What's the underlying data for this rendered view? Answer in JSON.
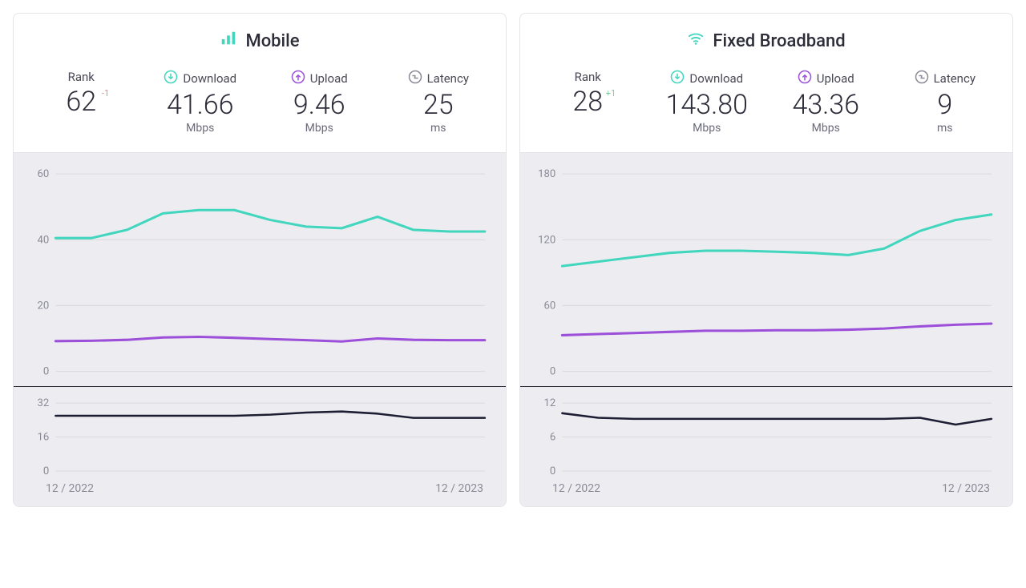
{
  "colors": {
    "download": "#41d6bd",
    "upload": "#9c4fd9",
    "latency": "#1d1d33",
    "grid": "#d8d8de",
    "axis_text": "#8a8a98",
    "panel_bg": "#ffffff",
    "chart_bg": "#ededf1",
    "icon_latency": "#8a8a98",
    "delta_neg": "#d9534f",
    "delta_pos": "#3fb66b"
  },
  "date_range": {
    "start": "12 / 2022",
    "end": "12 / 2023"
  },
  "labels": {
    "rank": "Rank",
    "download": "Download",
    "upload": "Upload",
    "latency": "Latency",
    "mbps": "Mbps",
    "ms": "ms"
  },
  "panels": [
    {
      "key": "mobile",
      "title": "Mobile",
      "icon": "bars",
      "rank": {
        "value": "62",
        "delta": "-1",
        "delta_dir": "neg"
      },
      "download": {
        "value": "41.66",
        "unit": "Mbps"
      },
      "upload": {
        "value": "9.46",
        "unit": "Mbps"
      },
      "latency": {
        "value": "25",
        "unit": "ms"
      },
      "main_chart": {
        "ylim": [
          0,
          60
        ],
        "yticks": [
          0,
          20,
          40,
          60
        ],
        "series": {
          "download": [
            40.5,
            40.5,
            43,
            48,
            49,
            49,
            46,
            44,
            43.5,
            47,
            43,
            42.5,
            42.5
          ],
          "upload": [
            9.2,
            9.3,
            9.6,
            10.3,
            10.5,
            10.2,
            9.8,
            9.5,
            9.1,
            10.0,
            9.6,
            9.5,
            9.5
          ]
        }
      },
      "latency_chart": {
        "ylim": [
          0,
          32
        ],
        "yticks": [
          0,
          16,
          32
        ],
        "series": {
          "latency": [
            26,
            26,
            26,
            26,
            26,
            26,
            26.5,
            27.5,
            28,
            27,
            25,
            25,
            25
          ]
        }
      }
    },
    {
      "key": "fixed",
      "title": "Fixed Broadband",
      "icon": "wifi",
      "rank": {
        "value": "28",
        "delta": "+1",
        "delta_dir": "pos"
      },
      "download": {
        "value": "143.80",
        "unit": "Mbps"
      },
      "upload": {
        "value": "43.36",
        "unit": "Mbps"
      },
      "latency": {
        "value": "9",
        "unit": "ms"
      },
      "main_chart": {
        "ylim": [
          0,
          180
        ],
        "yticks": [
          0,
          60,
          120,
          180
        ],
        "series": {
          "download": [
            96,
            100,
            104,
            108,
            110,
            110,
            109,
            108,
            106,
            112,
            128,
            138,
            143
          ],
          "upload": [
            33,
            34,
            35,
            36,
            37,
            37,
            37.5,
            37.5,
            38,
            39,
            41,
            42.5,
            43.5
          ]
        }
      },
      "latency_chart": {
        "ylim": [
          0,
          12
        ],
        "yticks": [
          0,
          6,
          12
        ],
        "series": {
          "latency": [
            10.2,
            9.4,
            9.2,
            9.2,
            9.2,
            9.2,
            9.2,
            9.2,
            9.2,
            9.2,
            9.4,
            8.2,
            9.2
          ]
        }
      }
    }
  ]
}
